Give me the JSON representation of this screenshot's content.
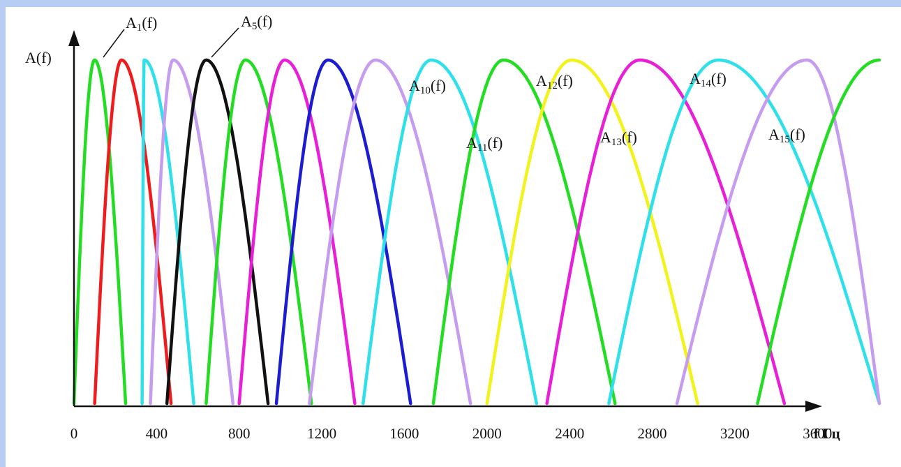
{
  "chart_data": {
    "type": "line",
    "ylabel": "A(f)",
    "xlabel": "f Гц",
    "x_ticks": [
      0,
      400,
      800,
      1200,
      1600,
      2000,
      2400,
      2800,
      3200,
      3600
    ],
    "xlim": [
      0,
      3900
    ],
    "ylim": [
      0,
      1
    ],
    "grid": false,
    "legend": "none",
    "series": [
      {
        "color": "#22dd22",
        "start": 0,
        "peak": 100,
        "end": 250
      },
      {
        "name": "A1(f)",
        "color": "#ee1c1c",
        "start": 100,
        "peak": 230,
        "end": 470
      },
      {
        "color": "#2ee0ea",
        "start": 330,
        "peak": 340,
        "end": 580
      },
      {
        "color": "#c59cef",
        "start": 370,
        "peak": 480,
        "end": 770
      },
      {
        "name": "A5(f)",
        "color": "#111111",
        "start": 450,
        "peak": 640,
        "end": 940
      },
      {
        "color": "#22dd22",
        "start": 640,
        "peak": 830,
        "end": 1150
      },
      {
        "color": "#e81fd6",
        "start": 800,
        "peak": 1020,
        "end": 1360
      },
      {
        "color": "#1c1cd0",
        "start": 980,
        "peak": 1230,
        "end": 1630
      },
      {
        "color": "#c59cef",
        "start": 1140,
        "peak": 1460,
        "end": 1920
      },
      {
        "name": "A10(f)",
        "color": "#2ee0ea",
        "start": 1400,
        "peak": 1730,
        "end": 2240
      },
      {
        "name": "A11(f)",
        "color": "#22dd22",
        "start": 1740,
        "peak": 2080,
        "end": 2620
      },
      {
        "name": "A12(f)",
        "color": "#f2f21c",
        "start": 2000,
        "peak": 2410,
        "end": 3020
      },
      {
        "name": "A13(f)",
        "color": "#e81fd6",
        "start": 2290,
        "peak": 2740,
        "end": 3440
      },
      {
        "name": "A14(f)",
        "color": "#2ee0ea",
        "start": 2590,
        "peak": 3120,
        "end": 3900
      },
      {
        "name": "A15(f)",
        "color": "#c59cef",
        "start": 2920,
        "peak": 3550,
        "end": 3900
      },
      {
        "color": "#22dd22",
        "start": 3310,
        "peak": 3900,
        "end": 3900
      }
    ],
    "annotations": [
      {
        "text": "A",
        "sub": "1",
        "suffix": "(f)"
      },
      {
        "text": "A",
        "sub": "5",
        "suffix": "(f)"
      },
      {
        "text": "A",
        "sub": "10",
        "suffix": "(f)"
      },
      {
        "text": "A",
        "sub": "11",
        "suffix": "(f)"
      },
      {
        "text": "A",
        "sub": "12",
        "suffix": "(f)"
      },
      {
        "text": "A",
        "sub": "13",
        "suffix": "(f)"
      },
      {
        "text": "A",
        "sub": "14",
        "suffix": "(f)"
      },
      {
        "text": "A",
        "sub": "15",
        "suffix": "(f)"
      }
    ]
  }
}
